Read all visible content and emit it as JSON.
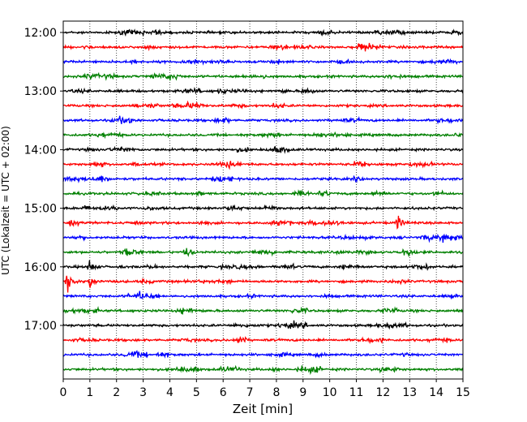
{
  "chart_data": {
    "type": "line",
    "title": "",
    "xlabel": "Zeit  [min]",
    "ylabel": "UTC (Lokalzeit = UTC + 02:00)",
    "xlim": [
      0,
      15
    ],
    "x_ticks": [
      "0",
      "1",
      "2",
      "3",
      "4",
      "5",
      "6",
      "7",
      "8",
      "9",
      "10",
      "11",
      "12",
      "13",
      "14",
      "15"
    ],
    "y_tick_labels": [
      "12:00",
      "13:00",
      "14:00",
      "15:00",
      "16:00",
      "17:00"
    ],
    "trace_colors": [
      "#000000",
      "#ff0000",
      "#0000ff",
      "#008000"
    ],
    "grid": "vertical-dotted",
    "trace_start_times": [
      "12:00",
      "12:15",
      "12:30",
      "12:45",
      "13:00",
      "13:15",
      "13:30",
      "13:45",
      "14:00",
      "14:15",
      "14:30",
      "14:45",
      "15:00",
      "15:15",
      "15:30",
      "15:45",
      "16:00",
      "16:15",
      "16:30",
      "16:45",
      "17:00",
      "17:15",
      "17:30",
      "17:45"
    ],
    "events": [
      {
        "trace": "16:15",
        "time_min": 0.95,
        "amplitude": "large"
      },
      {
        "trace": "16:15",
        "time_min": 0.15,
        "amplitude": "large"
      },
      {
        "trace": "15:45",
        "time_min": 4.55,
        "amplitude": "medium"
      },
      {
        "trace": "15:45",
        "time_min": 2.3,
        "amplitude": "small"
      },
      {
        "trace": "15:15",
        "time_min": 12.5,
        "amplitude": "medium"
      },
      {
        "trace": "16:00",
        "time_min": 0.95,
        "amplitude": "medium"
      }
    ]
  }
}
